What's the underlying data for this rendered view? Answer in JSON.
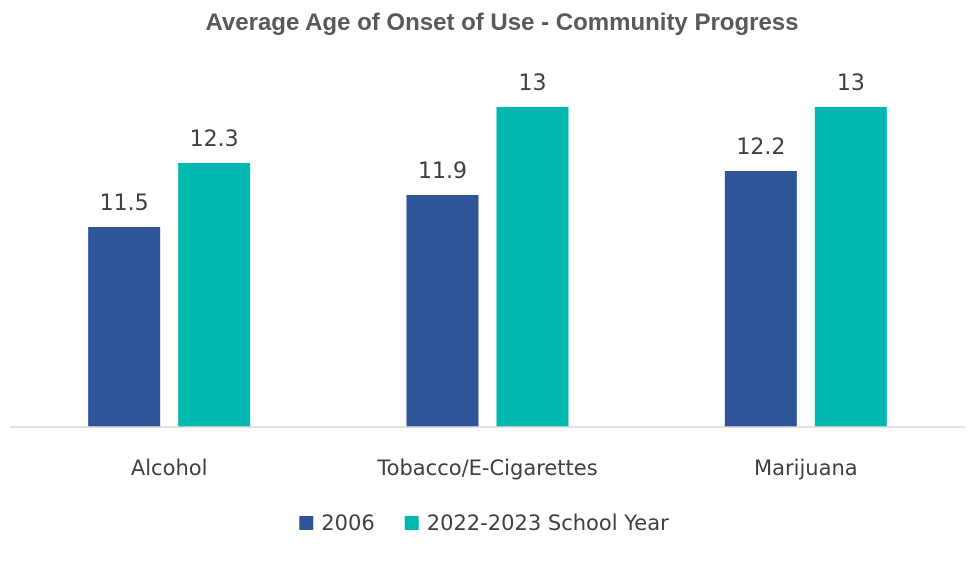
{
  "chart_data": {
    "type": "bar",
    "title": "Average Age of Onset of Use - Community Progress",
    "categories": [
      "Alcohol",
      "Tobacco/E-Cigarettes",
      "Marijuana"
    ],
    "series": [
      {
        "name": "2006",
        "values": [
          11.5,
          11.9,
          12.2
        ],
        "color": "#2E5597"
      },
      {
        "name": "2022-2023 School Year",
        "values": [
          12.3,
          13,
          13
        ],
        "color": "#00B8B0"
      }
    ],
    "data_labels": [
      [
        "11.5",
        "11.9",
        "12.2"
      ],
      [
        "12.3",
        "13",
        "13"
      ]
    ],
    "xlabel": "",
    "ylabel": "",
    "ylim": [
      9,
      13
    ],
    "y_axis_visible": false,
    "grid": false,
    "legend_position": "bottom"
  }
}
